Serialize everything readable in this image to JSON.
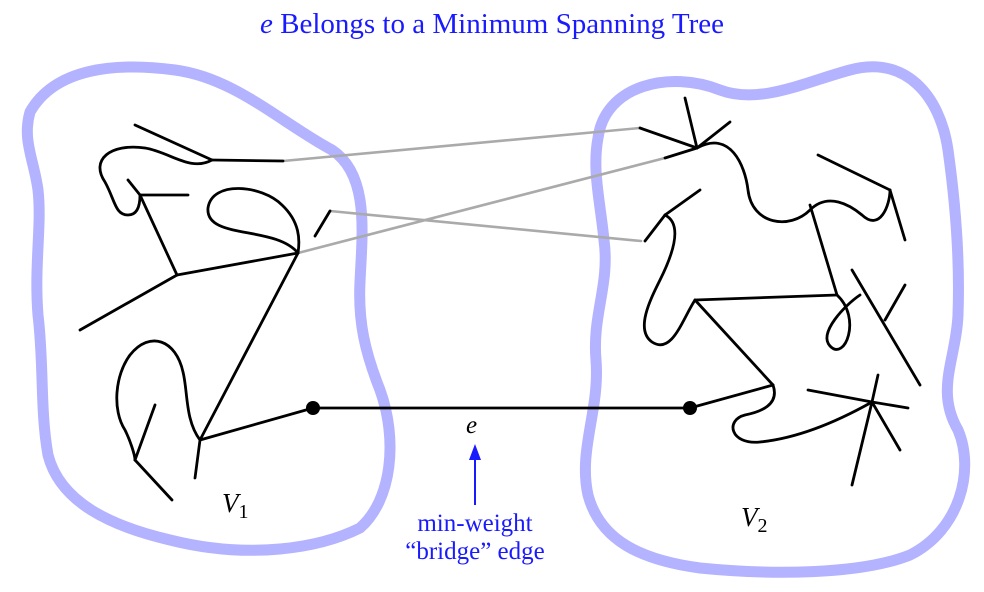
{
  "title": {
    "variable": "e",
    "rest": "Belongs to a Minimum Spanning Tree"
  },
  "sets": {
    "left": {
      "symbol": "V",
      "subscript": "1"
    },
    "right": {
      "symbol": "V",
      "subscript": "2"
    }
  },
  "edge": {
    "label": "e"
  },
  "annotation": {
    "line1": "min-weight",
    "line2": "“bridge” edge"
  },
  "colors": {
    "region_outline": "#b3b3ff",
    "bridge_edges": "#aaaaaa",
    "tree_edges": "#000000",
    "annotation": "#1a1aff"
  }
}
